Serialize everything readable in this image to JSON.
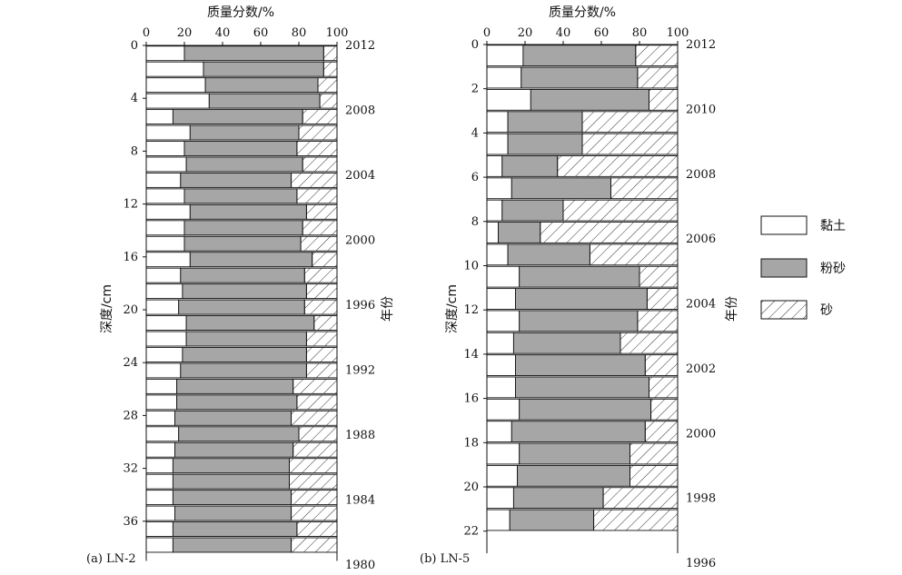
{
  "chart_data": [
    {
      "type": "bar",
      "stacking": "percent",
      "orientation": "horizontal",
      "panel_label": "(a) LN-2",
      "xlabel": "质量分数/%",
      "ylabel": "深度/cm",
      "y2label": "年份",
      "xlim": [
        0,
        100
      ],
      "xticks": [
        0,
        20,
        40,
        60,
        80,
        100
      ],
      "ylim": [
        0,
        39
      ],
      "yticks": [
        0,
        4,
        8,
        12,
        16,
        20,
        24,
        28,
        32,
        36
      ],
      "year_ticks": [
        2012,
        2008,
        2004,
        2000,
        1996,
        1992,
        1988,
        1984,
        1980
      ],
      "layer_thickness_cm": 1.2,
      "depth_top_cm": [
        0,
        1.2,
        2.4,
        3.6,
        4.8,
        6.0,
        7.2,
        8.4,
        9.6,
        10.8,
        12.0,
        13.2,
        14.4,
        15.6,
        16.8,
        18.0,
        19.2,
        20.4,
        21.6,
        22.8,
        24.0,
        25.2,
        26.4,
        27.6,
        28.8,
        30.0,
        31.2,
        32.4,
        33.6,
        34.8,
        36.0,
        37.2
      ],
      "series": [
        {
          "name": "黏土",
          "values": [
            20,
            30,
            31,
            33,
            14,
            23,
            20,
            21,
            18,
            20,
            23,
            20,
            20,
            23,
            18,
            19,
            17,
            21,
            21,
            19,
            18,
            16,
            16,
            15,
            17,
            15,
            14,
            14,
            14,
            15,
            14,
            14
          ]
        },
        {
          "name": "粉砂",
          "values": [
            73,
            63,
            59,
            58,
            68,
            57,
            59,
            61,
            58,
            59,
            61,
            62,
            61,
            64,
            65,
            65,
            66,
            67,
            63,
            65,
            66,
            61,
            63,
            61,
            63,
            62,
            61,
            61,
            62,
            61,
            65,
            62
          ]
        },
        {
          "name": "砂",
          "values": [
            7,
            7,
            10,
            9,
            18,
            20,
            21,
            18,
            24,
            21,
            16,
            18,
            19,
            13,
            17,
            16,
            17,
            12,
            16,
            16,
            16,
            23,
            21,
            24,
            20,
            23,
            25,
            25,
            24,
            24,
            21,
            24
          ]
        }
      ]
    },
    {
      "type": "bar",
      "stacking": "percent",
      "orientation": "horizontal",
      "panel_label": "(b) LN-5",
      "xlabel": "质量分数/%",
      "ylabel": "深度/cm",
      "y2label": "年份",
      "xlim": [
        0,
        100
      ],
      "xticks": [
        0,
        20,
        40,
        60,
        80,
        100
      ],
      "ylim": [
        0,
        23
      ],
      "yticks": [
        0,
        2,
        4,
        6,
        8,
        10,
        12,
        14,
        16,
        18,
        20,
        22
      ],
      "year_ticks": [
        2012,
        2010,
        2008,
        2006,
        2004,
        2002,
        2000,
        1998,
        1996
      ],
      "layer_thickness_cm": 1.0,
      "depth_top_cm": [
        0,
        1,
        2,
        3,
        4,
        5,
        6,
        7,
        8,
        9,
        10,
        11,
        12,
        13,
        14,
        15,
        16,
        17,
        18,
        19,
        20,
        21
      ],
      "series": [
        {
          "name": "黏土",
          "values": [
            19,
            18,
            23,
            11,
            11,
            8,
            13,
            8,
            6,
            11,
            17,
            15,
            17,
            14,
            15,
            15,
            17,
            13,
            17,
            16,
            14,
            12
          ]
        },
        {
          "name": "粉砂",
          "values": [
            59,
            61,
            62,
            39,
            39,
            29,
            52,
            32,
            22,
            43,
            63,
            69,
            62,
            56,
            68,
            70,
            69,
            70,
            58,
            59,
            47,
            44
          ]
        },
        {
          "name": "砂",
          "values": [
            22,
            21,
            15,
            50,
            50,
            63,
            35,
            60,
            72,
            46,
            20,
            16,
            21,
            30,
            17,
            15,
            14,
            17,
            25,
            25,
            39,
            44
          ]
        }
      ]
    }
  ],
  "legend": {
    "position": "right",
    "items": [
      {
        "label": "黏土",
        "style": "white"
      },
      {
        "label": "粉砂",
        "style": "gray"
      },
      {
        "label": "砂",
        "style": "hatch"
      }
    ]
  },
  "colors": {
    "clay": "#ffffff",
    "silt": "#a6a6a6",
    "sand_hatch": "#333333",
    "stroke": "#111111"
  }
}
